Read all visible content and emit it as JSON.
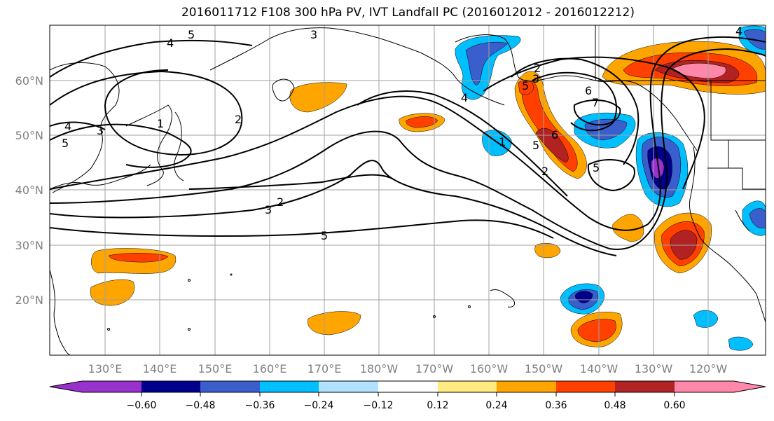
{
  "title": "2016011712 F108 300 hPa PV, IVT Landfall PC (2016012012 - 2016012212)",
  "colors": [
    "#9932cc",
    "#00008b",
    "#3a5fcd",
    "#00bfff",
    "#b0e2ff",
    "#ffffff",
    "#ffeb80",
    "#ffa500",
    "#ff4000",
    "#b22222",
    "#ff88aa"
  ],
  "map": {
    "lon_labels": [
      "130°E",
      "140°E",
      "150°E",
      "160°E",
      "170°E",
      "180°W",
      "170°W",
      "160°W",
      "150°W",
      "140°W",
      "130°W",
      "120°W"
    ],
    "lat_labels": [
      "60°N",
      "50°N",
      "40°N",
      "30°N",
      "20°N"
    ]
  },
  "colorbar": {
    "tick_labels": [
      "−0.60",
      "−0.48",
      "−0.36",
      "−0.24",
      "−0.12",
      "0.12",
      "0.24",
      "0.36",
      "0.48",
      "0.60"
    ]
  },
  "contour_labels": [
    "5",
    "3",
    "4",
    "2",
    "1",
    "4",
    "3",
    "5",
    "3",
    "2",
    "5",
    "4",
    "1",
    "5",
    "2",
    "2",
    "6",
    "7",
    "5",
    "6",
    "3",
    "5",
    "4"
  ]
}
